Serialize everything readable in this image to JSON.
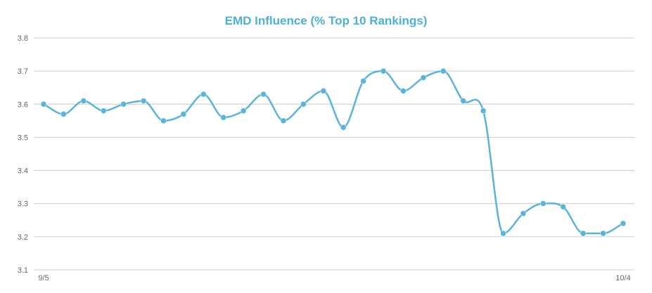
{
  "chart_data": {
    "type": "line",
    "title": "EMD Influence (% Top 10 Rankings)",
    "xlabel": "",
    "ylabel": "",
    "x_tick_labels": [
      "9/5",
      "10/4"
    ],
    "y_ticks": [
      "3.1",
      "3.2",
      "3.3",
      "3.4",
      "3.5",
      "3.6",
      "3.7",
      "3.8"
    ],
    "ylim": [
      3.1,
      3.8
    ],
    "grid": true,
    "legend": "none",
    "series": [
      {
        "values": [
          3.6,
          3.57,
          3.61,
          3.58,
          3.6,
          3.61,
          3.55,
          3.57,
          3.63,
          3.56,
          3.58,
          3.63,
          3.55,
          3.6,
          3.64,
          3.53,
          3.67,
          3.7,
          3.64,
          3.68,
          3.7,
          3.61,
          3.58,
          3.21,
          3.27,
          3.3,
          3.29,
          3.21,
          3.21,
          3.24
        ],
        "color": "#5ab4da"
      }
    ],
    "colors": {
      "grid": "#cccccc",
      "axis": "#c0d0e0",
      "title": "#4fb0d6"
    }
  }
}
